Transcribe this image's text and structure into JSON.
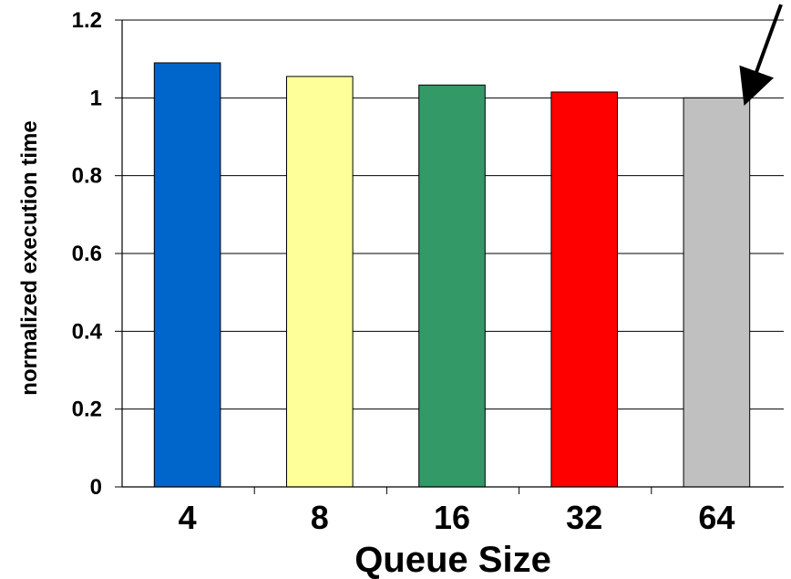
{
  "chart_data": {
    "type": "bar",
    "title": "",
    "xlabel": "Queue Size",
    "ylabel": "normalized execution time",
    "categories": [
      "4",
      "8",
      "16",
      "32",
      "64"
    ],
    "values": [
      1.09,
      1.055,
      1.033,
      1.015,
      1.0
    ],
    "bar_colors": [
      "#0066cc",
      "#ffff99",
      "#339966",
      "#ff0000",
      "#c0c0c0"
    ],
    "ylim": [
      0,
      1.2
    ],
    "yticks": [
      0,
      0.2,
      0.4,
      0.6,
      0.8,
      1,
      1.2
    ],
    "ytick_labels": [
      "0",
      "0.2",
      "0.4",
      "0.6",
      "0.8",
      "1",
      "1.2"
    ],
    "grid": true,
    "annotations": [
      {
        "type": "arrow",
        "target_category": "64",
        "label": ""
      }
    ]
  }
}
